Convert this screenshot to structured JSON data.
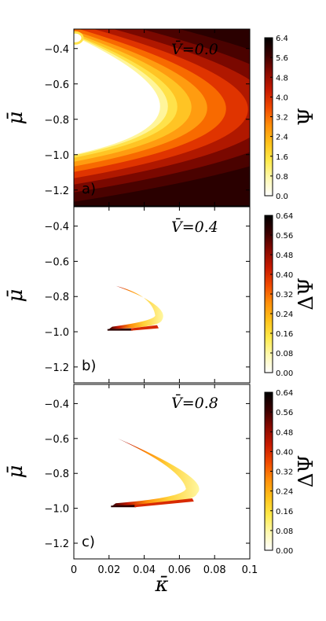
{
  "chart_data": [
    {
      "type": "heatmap",
      "panel_label": "a)",
      "annotation": "V̄=0.0",
      "xlabel": "κ̄",
      "ylabel": "μ̄",
      "xlim": [
        0,
        0.1
      ],
      "ylim": [
        -1.29,
        -0.29
      ],
      "x_ticks": [
        "0",
        "0.02",
        "0.04",
        "0.06",
        "0.08",
        "0.1"
      ],
      "y_ticks": [
        "−0.4",
        "−0.6",
        "−0.8",
        "−1.0",
        "−1.2"
      ],
      "y_tick_values": [
        -0.4,
        -0.6,
        -0.8,
        -1.0,
        -1.2
      ],
      "colorbar": {
        "label": "Ψ",
        "ticks": [
          "0.0",
          "0.8",
          "1.6",
          "2.4",
          "3.2",
          "4.0",
          "4.8",
          "5.6",
          "6.4"
        ],
        "tick_values": [
          0,
          0.8,
          1.6,
          2.4,
          3.2,
          4.0,
          4.8,
          5.6,
          6.4
        ],
        "range": [
          0,
          6.4
        ]
      },
      "region": {
        "description_values": "nonzero region bounded by parabola; vertex",
        "vertex_kappa": 0.049,
        "vertex_mu": -0.79,
        "lower_mu_at_kappa_0": -1.0,
        "upper_mu_at_kappa_0": -0.33,
        "max_value": 6.4
      }
    },
    {
      "type": "heatmap",
      "panel_label": "b)",
      "annotation": "V̄=0.4",
      "xlabel": "κ̄",
      "ylabel": "μ̄",
      "xlim": [
        0,
        0.1
      ],
      "ylim": [
        -1.29,
        -0.29
      ],
      "y_ticks": [
        "−0.4",
        "−0.6",
        "−0.8",
        "−1.0",
        "−1.2"
      ],
      "y_tick_values": [
        -0.4,
        -0.6,
        -0.8,
        -1.0,
        -1.2
      ],
      "colorbar": {
        "label": "ΔΨ",
        "ticks": [
          "0.00",
          "0.08",
          "0.16",
          "0.24",
          "0.32",
          "0.40",
          "0.48",
          "0.56",
          "0.64"
        ],
        "tick_values": [
          0,
          0.08,
          0.16,
          0.24,
          0.32,
          0.4,
          0.48,
          0.56,
          0.64
        ],
        "range": [
          0,
          0.64
        ]
      },
      "region": {
        "vertex_kappa": 0.05,
        "vertex_mu": -0.9,
        "upper_end_kappa": 0.024,
        "upper_end_mu": -0.74,
        "lower_end_kappa": 0.02,
        "lower_end_mu": -0.985
      }
    },
    {
      "type": "heatmap",
      "panel_label": "c)",
      "annotation": "V̄=0.8",
      "xlabel": "κ̄",
      "ylabel": "μ̄",
      "xlim": [
        0,
        0.1
      ],
      "ylim": [
        -1.29,
        -0.29
      ],
      "x_ticks": [
        "0",
        "0.02",
        "0.04",
        "0.06",
        "0.08",
        "0.1"
      ],
      "y_ticks": [
        "−0.4",
        "−0.6",
        "−0.8",
        "−1.0",
        "−1.2"
      ],
      "y_tick_values": [
        -0.4,
        -0.6,
        -0.8,
        -1.0,
        -1.2
      ],
      "colorbar": {
        "label": "ΔΨ",
        "ticks": [
          "0.00",
          "0.08",
          "0.16",
          "0.24",
          "0.32",
          "0.40",
          "0.48",
          "0.56",
          "0.64"
        ],
        "tick_values": [
          0,
          0.08,
          0.16,
          0.24,
          0.32,
          0.4,
          0.48,
          0.56,
          0.64
        ],
        "range": [
          0,
          0.64
        ]
      },
      "region": {
        "vertex_kappa": 0.07,
        "vertex_mu": -0.88,
        "upper_end_kappa": 0.025,
        "upper_end_mu": -0.6,
        "lower_end_kappa": 0.022,
        "lower_end_mu": -0.985
      }
    }
  ],
  "colors": {
    "colormap": [
      "#ffffff",
      "#fff9b0",
      "#ffea4a",
      "#ffc21a",
      "#ff8f0a",
      "#f04a00",
      "#c81a00",
      "#8a0a00",
      "#3a0000",
      "#000000"
    ]
  }
}
